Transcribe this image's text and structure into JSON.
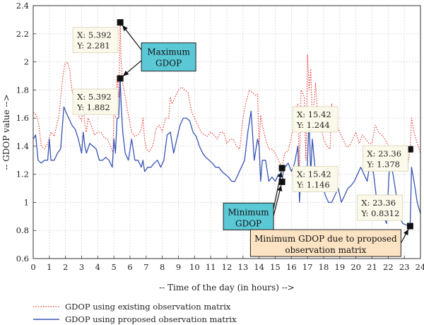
{
  "chart_data": {
    "type": "line",
    "xlabel": "-- Time of the day (in hours) -->",
    "ylabel": "-- GDOP value -->",
    "xlim": [
      0,
      24
    ],
    "ylim": [
      0.6,
      2.4
    ],
    "xticks": [
      "0",
      "1",
      "2",
      "3",
      "4",
      "5",
      "6",
      "7",
      "8",
      "9",
      "10",
      "11",
      "12",
      "13",
      "14",
      "15",
      "16",
      "17",
      "18",
      "19",
      "20",
      "21",
      "22",
      "23",
      "24"
    ],
    "yticks": [
      "0.6",
      "0.8",
      "1",
      "1.2",
      "1.4",
      "1.6",
      "1.8",
      "2",
      "2.2",
      "2.4"
    ],
    "grid": true,
    "legend_position": "bottom-left",
    "series": [
      {
        "name": "GDOP using existing observation matrix",
        "color": "#e8302a",
        "style": "dotted",
        "x": [
          0,
          0.2,
          0.35,
          0.5,
          0.7,
          0.9,
          1.1,
          1.3,
          1.6,
          1.8,
          1.95,
          2.1,
          2.25,
          2.4,
          2.6,
          2.8,
          3.0,
          3.1,
          3.2,
          3.3,
          3.4,
          3.6,
          3.8,
          4.0,
          4.2,
          4.4,
          4.6,
          4.8,
          4.95,
          5.0,
          5.1,
          5.2,
          5.3,
          5.392,
          5.45,
          5.55,
          5.7,
          5.9,
          6.1,
          6.3,
          6.5,
          6.7,
          6.8,
          6.9,
          7.0,
          7.2,
          7.4,
          7.5,
          7.6,
          7.8,
          8.0,
          8.2,
          8.4,
          8.5,
          8.6,
          8.8,
          9.0,
          9.2,
          9.4,
          9.6,
          9.8,
          10.0,
          10.2,
          10.4,
          10.6,
          10.8,
          11.0,
          11.2,
          11.4,
          11.6,
          11.8,
          12.0,
          12.2,
          12.4,
          12.6,
          12.8,
          13.0,
          13.2,
          13.4,
          13.6,
          13.8,
          13.9,
          14.0,
          14.1,
          14.2,
          14.4,
          14.6,
          14.8,
          15.0,
          15.2,
          15.42,
          15.5,
          15.6,
          15.8,
          16.0,
          16.2,
          16.4,
          16.5,
          16.6,
          16.8,
          16.9,
          17.0,
          17.1,
          17.2,
          17.3,
          17.4,
          17.5,
          17.6,
          17.8,
          18.0,
          18.2,
          18.4,
          18.5,
          18.6,
          18.8,
          19.0,
          19.2,
          19.4,
          19.6,
          19.8,
          20.0,
          20.2,
          20.4,
          20.6,
          20.8,
          21.0,
          21.2,
          21.4,
          21.6,
          21.8,
          22.0,
          22.2,
          22.4,
          22.6,
          22.8,
          23.0,
          23.2,
          23.36,
          23.45,
          23.6,
          23.8,
          24.0
        ],
        "values": [
          1.64,
          1.62,
          1.55,
          1.4,
          1.38,
          1.42,
          1.5,
          1.47,
          1.62,
          1.86,
          1.98,
          2.0,
          1.95,
          1.8,
          1.7,
          1.62,
          1.58,
          1.72,
          1.55,
          1.5,
          1.6,
          1.55,
          1.48,
          1.5,
          1.5,
          1.46,
          1.45,
          1.4,
          1.35,
          1.7,
          1.6,
          1.9,
          1.75,
          2.281,
          2.0,
          1.85,
          1.75,
          1.62,
          1.5,
          1.47,
          1.48,
          1.52,
          1.6,
          1.45,
          1.38,
          1.36,
          1.4,
          1.45,
          1.52,
          1.55,
          1.5,
          1.6,
          1.6,
          1.75,
          1.7,
          1.75,
          1.8,
          1.82,
          1.8,
          1.78,
          1.65,
          1.6,
          1.55,
          1.5,
          1.48,
          1.47,
          1.5,
          1.48,
          1.45,
          1.5,
          1.5,
          1.42,
          1.45,
          1.45,
          1.4,
          1.38,
          1.6,
          1.72,
          1.8,
          1.78,
          1.76,
          1.77,
          1.4,
          1.62,
          1.55,
          1.45,
          1.38,
          1.38,
          1.35,
          1.3,
          1.244,
          1.3,
          1.35,
          1.37,
          1.46,
          1.6,
          1.7,
          1.2,
          1.8,
          1.75,
          1.3,
          2.05,
          1.8,
          1.95,
          1.6,
          1.7,
          1.85,
          1.65,
          1.55,
          1.45,
          1.4,
          1.38,
          1.7,
          1.6,
          1.55,
          1.5,
          1.45,
          1.4,
          1.4,
          1.45,
          1.5,
          1.42,
          1.48,
          1.45,
          1.42,
          1.42,
          1.55,
          1.5,
          1.48,
          1.45,
          1.4,
          1.3,
          1.25,
          1.35,
          1.3,
          1.28,
          1.25,
          1.378,
          1.6,
          1.5,
          1.42,
          1.35
        ]
      },
      {
        "name": "GDOP using proposed observation matrix",
        "color": "#3a55b4",
        "style": "solid",
        "x": [
          0,
          0.15,
          0.3,
          0.5,
          0.7,
          0.9,
          1.0,
          1.1,
          1.3,
          1.5,
          1.7,
          1.9,
          2.0,
          2.2,
          2.4,
          2.6,
          2.8,
          3.0,
          3.1,
          3.2,
          3.3,
          3.5,
          3.7,
          3.9,
          4.1,
          4.3,
          4.5,
          4.7,
          4.9,
          5.0,
          5.1,
          5.2,
          5.3,
          5.392,
          5.45,
          5.55,
          5.7,
          5.9,
          6.1,
          6.3,
          6.5,
          6.7,
          6.8,
          6.9,
          7.1,
          7.3,
          7.5,
          7.7,
          7.9,
          8.1,
          8.3,
          8.5,
          8.7,
          8.9,
          9.1,
          9.3,
          9.5,
          9.7,
          9.9,
          10.1,
          10.3,
          10.5,
          10.7,
          10.9,
          11.1,
          11.3,
          11.5,
          11.7,
          11.9,
          12.1,
          12.3,
          12.5,
          12.7,
          12.9,
          13.1,
          13.3,
          13.5,
          13.7,
          13.9,
          14.0,
          14.1,
          14.2,
          14.4,
          14.6,
          14.8,
          15.0,
          15.2,
          15.42,
          15.5,
          15.6,
          15.8,
          16.0,
          16.2,
          16.4,
          16.5,
          16.6,
          16.8,
          16.9,
          17.0,
          17.1,
          17.2,
          17.3,
          17.5,
          17.7,
          17.9,
          18.1,
          18.3,
          18.5,
          18.7,
          18.9,
          19.1,
          19.3,
          19.5,
          19.7,
          19.9,
          20.1,
          20.3,
          20.5,
          20.7,
          20.9,
          21.1,
          21.3,
          21.5,
          21.7,
          21.9,
          22.1,
          22.3,
          22.5,
          22.7,
          22.9,
          23.1,
          23.36,
          23.45,
          23.6,
          23.8,
          24.0
        ],
        "values": [
          1.45,
          1.48,
          1.3,
          1.28,
          1.3,
          1.3,
          1.45,
          1.3,
          1.3,
          1.35,
          1.38,
          1.68,
          1.65,
          1.6,
          1.55,
          1.52,
          1.45,
          1.35,
          1.5,
          1.4,
          1.35,
          1.42,
          1.4,
          1.38,
          1.3,
          1.3,
          1.32,
          1.3,
          1.25,
          1.45,
          1.35,
          1.6,
          1.6,
          1.882,
          1.7,
          1.5,
          1.35,
          1.3,
          1.45,
          1.3,
          1.3,
          1.25,
          1.3,
          1.22,
          1.25,
          1.25,
          1.28,
          1.3,
          1.25,
          1.3,
          1.48,
          1.5,
          1.35,
          1.45,
          1.55,
          1.6,
          1.6,
          1.58,
          1.5,
          1.47,
          1.4,
          1.35,
          1.32,
          1.3,
          1.28,
          1.25,
          1.25,
          1.22,
          1.2,
          1.18,
          1.15,
          1.15,
          1.2,
          1.25,
          1.3,
          1.5,
          1.65,
          1.3,
          1.45,
          1.4,
          1.15,
          1.3,
          1.3,
          1.15,
          1.18,
          1.15,
          1.2,
          1.146,
          1.22,
          1.25,
          1.28,
          1.22,
          1.28,
          1.4,
          1.0,
          1.2,
          1.18,
          1.1,
          1.3,
          1.6,
          1.2,
          1.45,
          1.2,
          1.1,
          1.15,
          1.05,
          1.0,
          1.0,
          1.05,
          1.1,
          1.0,
          1.05,
          1.1,
          1.12,
          1.15,
          1.2,
          1.25,
          1.2,
          1.15,
          1.3,
          1.2,
          1.0,
          0.95,
          0.9,
          0.85,
          1.3,
          1.2,
          1.05,
          0.9,
          0.85,
          0.84,
          0.8312,
          1.25,
          1.15,
          1.0,
          0.92
        ]
      }
    ],
    "annotations": [
      {
        "x": 5.392,
        "y": 2.281,
        "x_text": "X: 5.392",
        "y_text": "Y: 2.281"
      },
      {
        "x": 5.392,
        "y": 1.882,
        "x_text": "X: 5.392",
        "y_text": "Y: 1.882"
      },
      {
        "x": 15.42,
        "y": 1.244,
        "x_text": "X: 15.42",
        "y_text": "Y: 1.244"
      },
      {
        "x": 15.42,
        "y": 1.146,
        "x_text": "X: 15.42",
        "y_text": "Y: 1.146"
      },
      {
        "x": 23.36,
        "y": 1.378,
        "x_text": "X: 23.36",
        "y_text": "Y: 1.378"
      },
      {
        "x": 23.36,
        "y": 0.8312,
        "x_text": "X: 23.36",
        "y_text": "Y: 0.8312"
      }
    ],
    "callouts": {
      "maximum": [
        "Maximum",
        "GDOP"
      ],
      "minimum": [
        "Minimum",
        "GDOP"
      ],
      "proposed": [
        "Minimum GDOP due to proposed",
        "observation matrix"
      ]
    },
    "colors": {
      "callout_teal": "#5bc8d6",
      "callout_peach": "#fce3c3",
      "datatip_bg": "#fbf9ea",
      "grid": "#c8c8c8"
    }
  }
}
